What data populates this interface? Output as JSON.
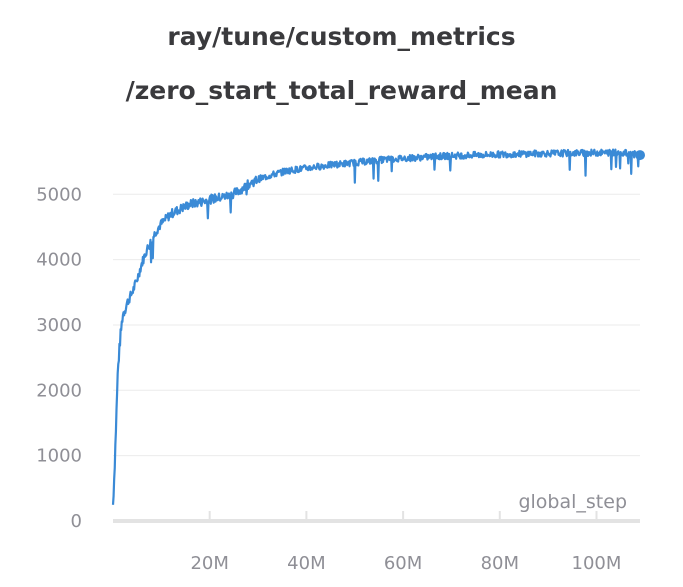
{
  "chart_data": {
    "type": "line",
    "title_lines": [
      "ray/tune/custom_metrics",
      "/zero_start_total_reward_mean"
    ],
    "xlabel": "global_step",
    "ylabel": "",
    "xlim": [
      0,
      109000000
    ],
    "ylim": [
      0,
      5800
    ],
    "grid": true,
    "legend": "none",
    "x_tick_labels": [
      "20M",
      "40M",
      "60M",
      "80M",
      "100M"
    ],
    "x_tick_values": [
      20000000,
      40000000,
      60000000,
      80000000,
      100000000
    ],
    "y_tick_labels": [
      "0",
      "1000",
      "2000",
      "3000",
      "4000",
      "5000"
    ],
    "y_tick_values": [
      0,
      1000,
      2000,
      3000,
      4000,
      5000
    ],
    "colors": {
      "line": "#3a8ad6",
      "grid": "#ebebeb",
      "axis": "#e3e3e3",
      "text": "#8f8f96",
      "title": "#3a3a3d"
    },
    "series": [
      {
        "x": [
          0,
          300000,
          600000,
          1000000,
          1500000,
          2000000,
          3000000,
          4000000,
          5000000,
          6000000,
          7000000,
          8000000,
          9000000,
          10000000,
          12000000,
          14000000,
          16000000,
          18000000,
          20000000,
          22000000,
          24000000,
          26000000,
          28000000,
          30000000,
          33000000,
          36000000,
          40000000,
          44000000,
          48000000,
          52000000,
          56000000,
          60000000,
          65000000,
          70000000,
          75000000,
          80000000,
          85000000,
          90000000,
          95000000,
          100000000,
          105000000,
          109000000
        ],
        "values": [
          250,
          750,
          1400,
          2300,
          2800,
          3150,
          3350,
          3500,
          3700,
          3950,
          4150,
          4300,
          4450,
          4550,
          4700,
          4780,
          4850,
          4880,
          4920,
          4950,
          4980,
          5050,
          5150,
          5230,
          5300,
          5360,
          5400,
          5440,
          5470,
          5500,
          5530,
          5550,
          5570,
          5590,
          5600,
          5610,
          5620,
          5625,
          5630,
          5635,
          5640,
          5600
        ]
      }
    ]
  }
}
